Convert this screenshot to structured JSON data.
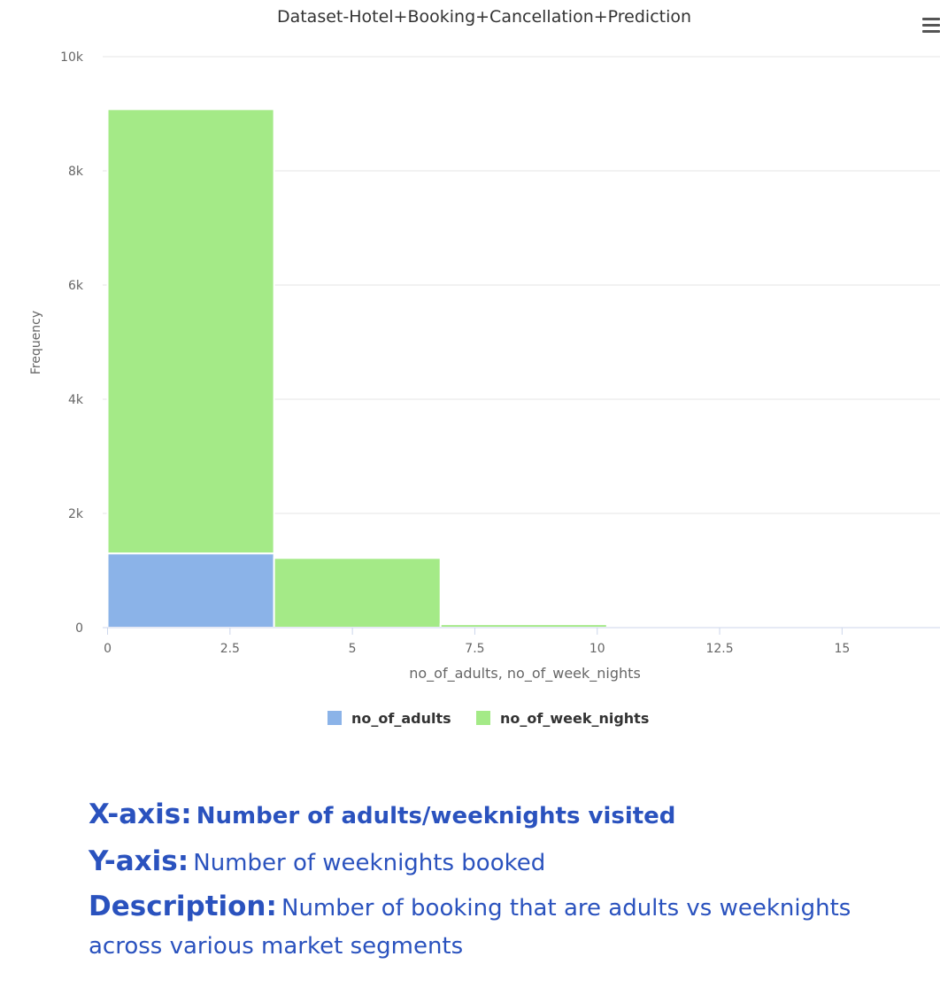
{
  "chart_data": {
    "type": "bar",
    "title": "Dataset-Hotel+Booking+Cancellation+Prediction",
    "xlabel": "no_of_adults, no_of_week_nights",
    "ylabel": "Frequency",
    "xlim": [
      -0.1,
      17
    ],
    "ylim": [
      0,
      10000
    ],
    "x_ticks": [
      0,
      2.5,
      5,
      7.5,
      10,
      12.5,
      15
    ],
    "x_tick_labels": [
      "0",
      "2.5",
      "5",
      "7.5",
      "10",
      "12.5",
      "15"
    ],
    "y_ticks": [
      0,
      2000,
      4000,
      6000,
      8000,
      10000
    ],
    "y_tick_labels": [
      "0",
      "2k",
      "4k",
      "6k",
      "8k",
      "10k"
    ],
    "bins": [
      [
        0,
        3.4
      ],
      [
        3.4,
        6.8
      ],
      [
        6.8,
        10.2
      ]
    ],
    "stacked": true,
    "grid": true,
    "legend_position": "bottom-center",
    "series": [
      {
        "name": "no_of_adults",
        "color": "#8bb3e8",
        "values": [
          1300,
          0,
          0
        ]
      },
      {
        "name": "no_of_week_nights",
        "color": "#a4ea87",
        "values": [
          7780,
          1220,
          60
        ]
      }
    ]
  },
  "notes": {
    "xaxis_key": "X-axis:",
    "xaxis_val": "Number of adults/weeknights visited",
    "yaxis_key": "Y-axis:",
    "yaxis_val": "Number of weeknights booked",
    "desc_key": "Description:",
    "desc_val": "Number of booking that are adults vs weeknights across various market segments"
  },
  "menu": {
    "icon": "hamburger-menu-icon"
  }
}
